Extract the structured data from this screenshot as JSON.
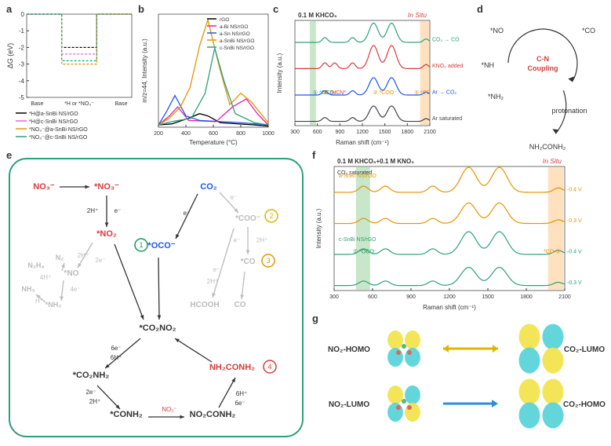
{
  "panel_labels": {
    "a": "a",
    "b": "b",
    "c": "c",
    "d": "d",
    "e": "e",
    "f": "f",
    "g": "g"
  },
  "a": {
    "type": "line",
    "xlim": [
      0,
      3
    ],
    "ylim": [
      -5,
      0
    ],
    "xticks": [
      "Base",
      "*H or *NO₃⁻",
      "Base"
    ],
    "yticks": [
      -5,
      -4,
      -3,
      -2,
      -1,
      0
    ],
    "ytitle": "ΔG (eV)",
    "legend": [
      {
        "label": "*H@a-SnBi NS/rGO",
        "color": "#000000"
      },
      {
        "label": "*H@c-SnBi NS/rGO",
        "color": "#e06bd6"
      },
      {
        "label": "*NO₃⁻@a-SnBi NS/rGO",
        "color": "#e59400"
      },
      {
        "label": "*NO₃⁻@c-SnBi NS/rGO",
        "color": "#2ea07a"
      }
    ],
    "series": [
      {
        "color": "#000000",
        "dashed": true,
        "pts": [
          [
            0,
            0
          ],
          [
            1,
            0
          ],
          [
            1,
            -2.0
          ],
          [
            2,
            -2.0
          ],
          [
            2,
            0
          ],
          [
            3,
            0
          ]
        ]
      },
      {
        "color": "#e06bd6",
        "dashed": true,
        "pts": [
          [
            0,
            0
          ],
          [
            1,
            0
          ],
          [
            1,
            -2.4
          ],
          [
            2,
            -2.4
          ],
          [
            2,
            0
          ],
          [
            3,
            0
          ]
        ]
      },
      {
        "color": "#e59400",
        "dashed": true,
        "pts": [
          [
            0,
            0
          ],
          [
            1,
            0
          ],
          [
            1,
            -3.0
          ],
          [
            2,
            -3.0
          ],
          [
            2,
            0
          ],
          [
            3,
            0
          ]
        ]
      },
      {
        "color": "#2ea07a",
        "dashed": true,
        "pts": [
          [
            0,
            0
          ],
          [
            1,
            0
          ],
          [
            1,
            -2.8
          ],
          [
            2,
            -2.8
          ],
          [
            2,
            0
          ],
          [
            3,
            0
          ]
        ]
      }
    ],
    "grid_color": "#ccc",
    "bg": "#ffffff"
  },
  "b": {
    "type": "line",
    "xlim": [
      200,
      1000
    ],
    "ylim": [
      0,
      1
    ],
    "xticks": [
      200,
      400,
      600,
      800,
      1000
    ],
    "xtitle": "Temperature (°C)",
    "ytitle": "m/z=44, Intensity (a.u.)",
    "legend": [
      {
        "label": "rGO",
        "color": "#000000"
      },
      {
        "label": "a-Bi NS/rGO",
        "color": "#e91eaa"
      },
      {
        "label": "a-Sn NS/rGO",
        "color": "#1e58e9"
      },
      {
        "label": "a-SnBi NS/rGO",
        "color": "#e59400"
      },
      {
        "label": "c-SnBi NS/rGO",
        "color": "#2ea07a"
      }
    ],
    "series": [
      {
        "color": "#000000",
        "pts": [
          [
            200,
            0.02
          ],
          [
            300,
            0.03
          ],
          [
            420,
            0.08
          ],
          [
            500,
            0.12
          ],
          [
            560,
            0.1
          ],
          [
            650,
            0.04
          ],
          [
            900,
            0.02
          ],
          [
            1000,
            0.01
          ]
        ]
      },
      {
        "color": "#e91eaa",
        "pts": [
          [
            200,
            0.02
          ],
          [
            280,
            0.1
          ],
          [
            340,
            0.18
          ],
          [
            420,
            0.06
          ],
          [
            620,
            0.05
          ],
          [
            740,
            0.18
          ],
          [
            840,
            0.25
          ],
          [
            920,
            0.12
          ],
          [
            1000,
            0.02
          ]
        ]
      },
      {
        "color": "#1e58e9",
        "pts": [
          [
            200,
            0.02
          ],
          [
            260,
            0.14
          ],
          [
            320,
            0.28
          ],
          [
            400,
            0.1
          ],
          [
            500,
            0.06
          ],
          [
            800,
            0.04
          ],
          [
            1000,
            0.02
          ]
        ]
      },
      {
        "color": "#e59400",
        "pts": [
          [
            200,
            0.02
          ],
          [
            280,
            0.08
          ],
          [
            360,
            0.18
          ],
          [
            430,
            0.35
          ],
          [
            500,
            0.72
          ],
          [
            560,
            0.95
          ],
          [
            640,
            0.55
          ],
          [
            720,
            0.2
          ],
          [
            800,
            0.3
          ],
          [
            880,
            0.22
          ],
          [
            1000,
            0.04
          ]
        ]
      },
      {
        "color": "#2ea07a",
        "pts": [
          [
            200,
            0.02
          ],
          [
            300,
            0.05
          ],
          [
            440,
            0.08
          ],
          [
            540,
            0.3
          ],
          [
            610,
            0.7
          ],
          [
            680,
            0.4
          ],
          [
            760,
            0.12
          ],
          [
            900,
            0.04
          ],
          [
            1000,
            0.02
          ]
        ]
      }
    ]
  },
  "c": {
    "type": "spectra",
    "xlim": [
      300,
      2100
    ],
    "xticks": [
      300,
      600,
      900,
      1200,
      1500,
      1800,
      2100
    ],
    "xtitle": "Raman shift (cm⁻¹)",
    "ytitle": "Intensity (a.u.)",
    "title": "0.1 M KHCO₃",
    "in_situ": "In Situ",
    "peaks": [
      700,
      1070,
      1350,
      1590,
      2050
    ],
    "traces": [
      {
        "color": "#2ea07a",
        "offset": 3,
        "right": "CO₂ → CO",
        "scale": 1.0
      },
      {
        "color": "#d83b3b",
        "offset": 2,
        "right": "KNO₃ added",
        "scale": 1.2,
        "extra_peak": 830
      },
      {
        "color": "#1e58e9",
        "offset": 1,
        "right": "Ar → CO₂",
        "scale": 0.9
      },
      {
        "color": "#444444",
        "offset": 0,
        "right": "Ar saturated",
        "scale": 0.8
      }
    ],
    "annots": [
      {
        "id": "1",
        "label": "① *OCO⁻",
        "x": 700,
        "color": "#13985c"
      },
      {
        "id": "2",
        "label": "② *COO⁻",
        "x": 1500,
        "color": "#e59400"
      },
      {
        "id": "3",
        "label": "③ *CO",
        "x": 2000,
        "color": "#e59400"
      },
      {
        "id": "4",
        "label": "④ *NCN*",
        "x": 830,
        "color": "#d83b3b"
      }
    ],
    "band_green": {
      "x": 500,
      "w": 80,
      "color": "#c8e6c9"
    },
    "band_orange": {
      "x": 1970,
      "w": 120,
      "color": "#ffe0bf"
    }
  },
  "d": {
    "type": "diagram",
    "labels": {
      "no": "*NO",
      "nh": "*NH",
      "nh2": "*NH₂",
      "co": "*CO",
      "cncoupling": "C-N\nCoupling",
      "proton": "protonation",
      "prod": "NH₂CONH₂"
    },
    "colors": {
      "N": "#d83b3b",
      "C": "#1e58e9",
      "txt": "#333",
      "cn": "#d83b3b"
    }
  },
  "e": {
    "type": "diagram",
    "border_color": "#2ea07a",
    "bg": "#ffffff",
    "nodes": {
      "no3m": "NO₃⁻",
      "sno3": "*NO₃⁻",
      "sno2": "*NO₂",
      "sno": "*NO",
      "snh2": "*NH₂",
      "n2": "N₂",
      "n2h4": "N₂H₄",
      "nh3": "NH₃",
      "co2": "CO₂",
      "scoo": "*COO⁻",
      "sco": "*CO",
      "co": "CO",
      "hcooh": "HCOOH",
      "soco": "*OCO⁻",
      "sc2n2": "*CO₂NO₂",
      "sco2nh2": "*CO₂NH₂",
      "sconh2": "*CONH₂",
      "no2conh2": "NO₂CONH₂",
      "prod": "NH₂CONH₂"
    },
    "circles": [
      {
        "n": "1",
        "color": "#13985c"
      },
      {
        "n": "2",
        "color": "#e0b400"
      },
      {
        "n": "3",
        "color": "#e59400"
      },
      {
        "n": "4",
        "color": "#d83b3b"
      }
    ],
    "colors": {
      "N": "#d83b3b",
      "C": "#1e58e9",
      "O": "#333",
      "gray": "#bbbbbb"
    }
  },
  "f": {
    "type": "spectra",
    "xlim": [
      300,
      2100
    ],
    "xticks": [
      300,
      600,
      900,
      1200,
      1500,
      1800,
      2100
    ],
    "xtitle": "Raman shift (cm⁻¹)",
    "ytitle": "Intensity (a.u.)",
    "title": "0.1 M KHCO₃+0.1 M KNO₃",
    "subtitle": "CO₂ saturated",
    "in_situ": "In Situ",
    "peaks": [
      530,
      700,
      1070,
      1350,
      1590,
      2050
    ],
    "traces": [
      {
        "color": "#e59400",
        "offset": 3,
        "right": "-0.4 V",
        "left": "a-SnBi NS/rGO",
        "scale": 1.1
      },
      {
        "color": "#e59400",
        "offset": 2,
        "right": "-0.3 V",
        "scale": 0.9
      },
      {
        "color": "#2ea07a",
        "offset": 1,
        "right": "-0.4 V",
        "left": "c-SnBi NS/rGO",
        "scale": 1.0
      },
      {
        "color": "#2ea07a",
        "offset": 0,
        "right": "-0.3 V",
        "scale": 0.8
      }
    ],
    "annots": [
      {
        "label": "① *OCO⁻",
        "x": 540,
        "color": "#13985c"
      },
      {
        "label": "*CO ③",
        "x": 2000,
        "color": "#e59400"
      }
    ],
    "band_green": {
      "x": 470,
      "w": 110,
      "color": "#c8e6c9"
    },
    "band_orange": {
      "x": 1970,
      "w": 120,
      "color": "#ffe0bf"
    }
  },
  "g": {
    "labels": {
      "no2h": "NO₂-HOMO",
      "no2l": "NO₂-LUMO",
      "co2h": "CO₂-HOMO",
      "co2l": "CO₂-LUMO"
    },
    "orb_colors": {
      "pos": "#f2e24a",
      "neg": "#55d3d8"
    }
  }
}
